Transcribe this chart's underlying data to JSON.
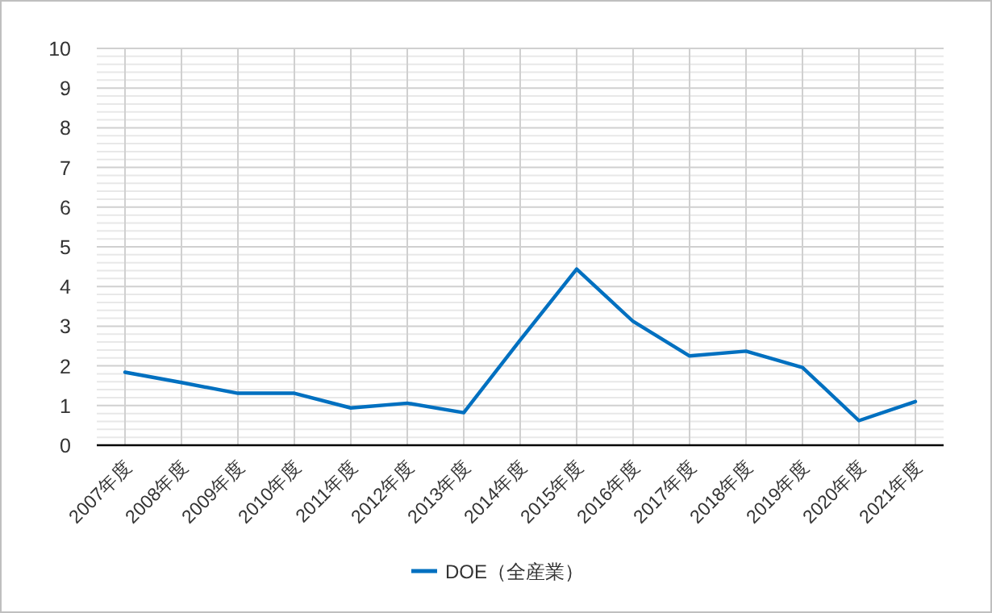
{
  "chart_data": {
    "type": "line",
    "categories": [
      "2007年度",
      "2008年度",
      "2009年度",
      "2010年度",
      "2011年度",
      "2012年度",
      "2013年度",
      "2014年度",
      "2015年度",
      "2016年度",
      "2017年度",
      "2018年度",
      "2019年度",
      "2020年度",
      "2021年度"
    ],
    "series": [
      {
        "name": "DOE（全産業）",
        "color": "#0070c0",
        "values": [
          1.84,
          1.58,
          1.31,
          1.31,
          0.94,
          1.06,
          0.82,
          2.65,
          4.44,
          3.12,
          2.25,
          2.37,
          1.96,
          0.62,
          1.1
        ]
      }
    ],
    "ylim": [
      0,
      10
    ],
    "yticks": [
      0,
      {
        "value": 0.2,
        "label": null
      },
      {
        "value": 0.4,
        "label": null
      },
      {
        "value": 0.6,
        "label": null
      },
      {
        "value": 0.8,
        "label": null
      },
      1,
      {
        "value": 1.2,
        "label": null
      },
      {
        "value": 1.4,
        "label": null
      },
      {
        "value": 1.6,
        "label": null
      },
      {
        "value": 1.8,
        "label": null
      },
      2,
      {
        "value": 2.2,
        "label": null
      },
      {
        "value": 2.4,
        "label": null
      },
      {
        "value": 2.6,
        "label": null
      },
      {
        "value": 2.8,
        "label": null
      },
      3,
      {
        "value": 3.2,
        "label": null
      },
      {
        "value": 3.4,
        "label": null
      },
      {
        "value": 3.6,
        "label": null
      },
      {
        "value": 3.8,
        "label": null
      },
      4,
      {
        "value": 4.2,
        "label": null
      },
      {
        "value": 4.4,
        "label": null
      },
      {
        "value": 4.6,
        "label": null
      },
      {
        "value": 4.8,
        "label": null
      },
      5,
      {
        "value": 5.2,
        "label": null
      },
      {
        "value": 5.4,
        "label": null
      },
      {
        "value": 5.6,
        "label": null
      },
      {
        "value": 5.8,
        "label": null
      },
      6,
      {
        "value": 6.2,
        "label": null
      },
      {
        "value": 6.4,
        "label": null
      },
      {
        "value": 6.6,
        "label": null
      },
      {
        "value": 6.8,
        "label": null
      },
      7,
      {
        "value": 7.2,
        "label": null
      },
      {
        "value": 7.4,
        "label": null
      },
      {
        "value": 7.6,
        "label": null
      },
      {
        "value": 7.8,
        "label": null
      },
      8,
      {
        "value": 8.2,
        "label": null
      },
      {
        "value": 8.4,
        "label": null
      },
      {
        "value": 8.6,
        "label": null
      },
      {
        "value": 8.8,
        "label": null
      },
      9,
      {
        "value": 9.2,
        "label": null
      },
      {
        "value": 9.4,
        "label": null
      },
      {
        "value": 9.6,
        "label": null
      },
      {
        "value": 9.8,
        "label": null
      },
      10
    ],
    "grid": true,
    "legend": "bottom",
    "marker": "none",
    "line_style": "solid"
  }
}
